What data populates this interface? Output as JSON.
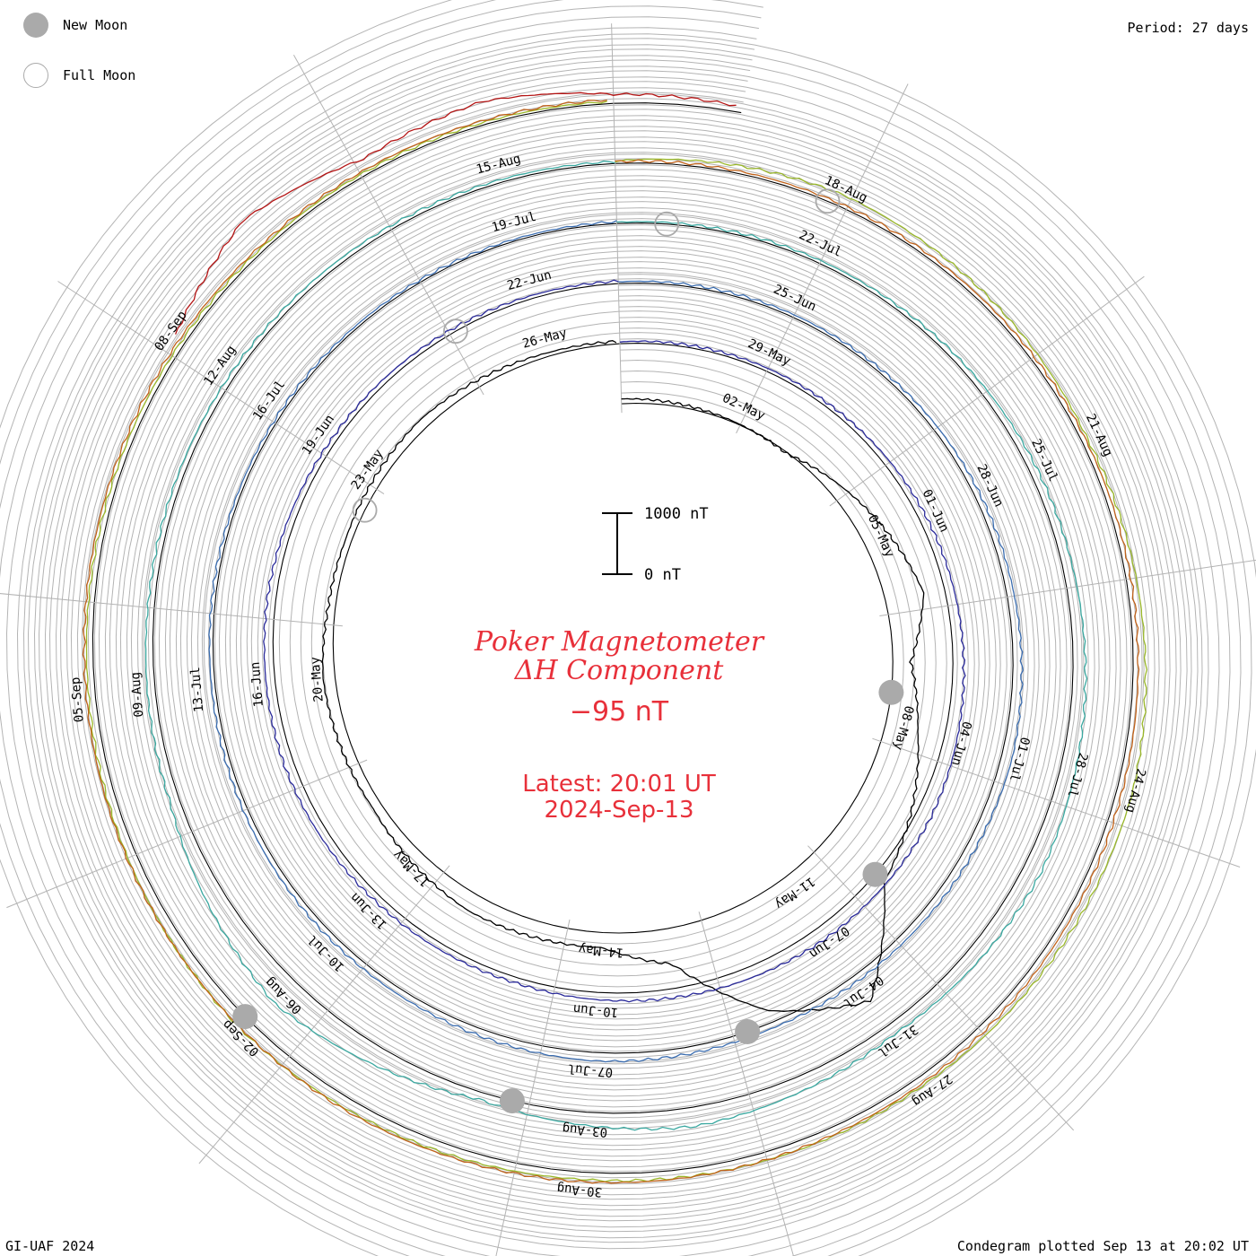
{
  "header": {
    "period_label": "Period: 27 days"
  },
  "legend": {
    "new_moon_label": "New Moon",
    "full_moon_label": "Full Moon",
    "new_moon_color": "#aaaaaa",
    "full_moon_color": "#aaaaaa"
  },
  "title": {
    "line1": "Poker Magnetometer",
    "line2": "ΔH Component",
    "current_value": "−95 nT"
  },
  "latest": {
    "time": "Latest: 20:01 UT",
    "date": "2024-Sep-13"
  },
  "scale": {
    "top_label": "1000 nT",
    "bottom_label": "0 nT"
  },
  "footer": {
    "left": "GI-UAF 2024",
    "right": "Condegram plotted Sep 13 at 20:02 UT"
  },
  "colors": {
    "accent_text": "#e8303a",
    "grid": "#b4b4b4",
    "baseline": "#000000"
  },
  "chart_data": {
    "type": "line",
    "chart_style": "spiral condegram, one turn per 27-day period, clockwise, starting ~1 May 2024",
    "title": "Poker Magnetometer ΔH Component",
    "units": "nT",
    "period_days": 27,
    "start_date": "2024-05-01",
    "end_date": "2024-09-13",
    "date_labels": [
      {
        "day": 2,
        "label": "02-May"
      },
      {
        "day": 5,
        "label": "05-May"
      },
      {
        "day": 8,
        "label": "08-May"
      },
      {
        "day": 11,
        "label": "11-May"
      },
      {
        "day": 14,
        "label": "14-May"
      },
      {
        "day": 17,
        "label": "17-May"
      },
      {
        "day": 20,
        "label": "20-May"
      },
      {
        "day": 23,
        "label": "23-May"
      },
      {
        "day": 26,
        "label": "26-May"
      },
      {
        "day": 29,
        "label": "29-May"
      },
      {
        "day": 32,
        "label": "01-Jun"
      },
      {
        "day": 35,
        "label": "04-Jun"
      },
      {
        "day": 38,
        "label": "07-Jun"
      },
      {
        "day": 41,
        "label": "10-Jun"
      },
      {
        "day": 44,
        "label": "13-Jun"
      },
      {
        "day": 47,
        "label": "16-Jun"
      },
      {
        "day": 50,
        "label": "19-Jun"
      },
      {
        "day": 53,
        "label": "22-Jun"
      },
      {
        "day": 56,
        "label": "25-Jun"
      },
      {
        "day": 59,
        "label": "28-Jun"
      },
      {
        "day": 62,
        "label": "01-Jul"
      },
      {
        "day": 65,
        "label": "04-Jul"
      },
      {
        "day": 68,
        "label": "07-Jul"
      },
      {
        "day": 71,
        "label": "10-Jul"
      },
      {
        "day": 74,
        "label": "13-Jul"
      },
      {
        "day": 77,
        "label": "16-Jul"
      },
      {
        "day": 80,
        "label": "19-Jul"
      },
      {
        "day": 83,
        "label": "22-Jul"
      },
      {
        "day": 86,
        "label": "25-Jul"
      },
      {
        "day": 89,
        "label": "28-Jul"
      },
      {
        "day": 92,
        "label": "31-Jul"
      },
      {
        "day": 95,
        "label": "03-Aug"
      },
      {
        "day": 98,
        "label": "06-Aug"
      },
      {
        "day": 101,
        "label": "09-Aug"
      },
      {
        "day": 104,
        "label": "12-Aug"
      },
      {
        "day": 107,
        "label": "15-Aug"
      },
      {
        "day": 110,
        "label": "18-Aug"
      },
      {
        "day": 113,
        "label": "21-Aug"
      },
      {
        "day": 116,
        "label": "24-Aug"
      },
      {
        "day": 119,
        "label": "27-Aug"
      },
      {
        "day": 122,
        "label": "30-Aug"
      },
      {
        "day": 125,
        "label": "02-Sep"
      },
      {
        "day": 128,
        "label": "05-Sep"
      },
      {
        "day": 131,
        "label": "08-Sep"
      }
    ],
    "new_moon_days": [
      7.5,
      37.0,
      66.3,
      95.7,
      125.1
    ],
    "full_moon_days": [
      22.5,
      52.0,
      81.5,
      109.9
    ],
    "series": [
      {
        "color": "#000000",
        "start_day": 0,
        "end_day": 27,
        "baseline_days": [
          0,
          3,
          6,
          7,
          8,
          9,
          10,
          11,
          12,
          13,
          14,
          16,
          18,
          20,
          21,
          22,
          24,
          26,
          27
        ],
        "values": [
          -80,
          20,
          -650,
          -300,
          -550,
          -900,
          -1200,
          -2500,
          -1800,
          -600,
          -250,
          -300,
          -150,
          -200,
          -120,
          -100,
          -160,
          -60,
          -40
        ]
      },
      {
        "color": "#2a2a9a",
        "start_day": 27,
        "end_day": 54,
        "baseline_days": [
          27,
          30,
          32,
          34,
          36,
          38,
          40,
          42,
          44,
          46,
          48,
          50,
          52,
          54
        ],
        "values": [
          -30,
          -60,
          -120,
          -180,
          -250,
          -220,
          -150,
          -90,
          -110,
          -160,
          -140,
          -80,
          -60,
          -40
        ]
      },
      {
        "color": "#3b6db0",
        "start_day": 54,
        "end_day": 81,
        "baseline_days": [
          54,
          57,
          60,
          62,
          64,
          66,
          68,
          70,
          72,
          74,
          76,
          78,
          80,
          81
        ],
        "values": [
          -30,
          -50,
          -110,
          -180,
          -120,
          -90,
          -140,
          -100,
          -80,
          -60,
          -50,
          -40,
          -30,
          -30
        ]
      },
      {
        "color": "#3aa8a0",
        "start_day": 81,
        "end_day": 108,
        "baseline_days": [
          81,
          84,
          87,
          90,
          92,
          94,
          96,
          98,
          100,
          102,
          104,
          106,
          108
        ],
        "values": [
          -20,
          -60,
          -160,
          -300,
          -180,
          -320,
          -120,
          -500,
          -160,
          -100,
          -80,
          -60,
          -30
        ]
      },
      {
        "color": "#9ab82a",
        "start_day": 108,
        "end_day": 135,
        "baseline_days": [
          108,
          110,
          113,
          116,
          119,
          122,
          125,
          128,
          131,
          134,
          135
        ],
        "values": [
          -40,
          -200,
          -100,
          -260,
          -150,
          -120,
          -200,
          -110,
          -60,
          -40,
          -30
        ]
      },
      {
        "color": "#c0621a",
        "start_day": 108,
        "end_day": 135,
        "baseline_days": [
          108,
          112,
          116,
          120,
          124,
          128,
          132,
          135
        ],
        "values": [
          -30,
          -60,
          -90,
          -120,
          -200,
          -150,
          -90,
          -60
        ]
      },
      {
        "color": "#b41414",
        "start_day": 131,
        "end_day": 136,
        "baseline_days": [
          131,
          132,
          133,
          134,
          135,
          136
        ],
        "values": [
          -200,
          -600,
          -250,
          -380,
          -150,
          -95
        ]
      }
    ],
    "scale_bar": {
      "min": 0,
      "max": 1000,
      "unit": "nT"
    },
    "latest_value": -95,
    "latest_time": "2024-09-13 20:01 UT"
  }
}
